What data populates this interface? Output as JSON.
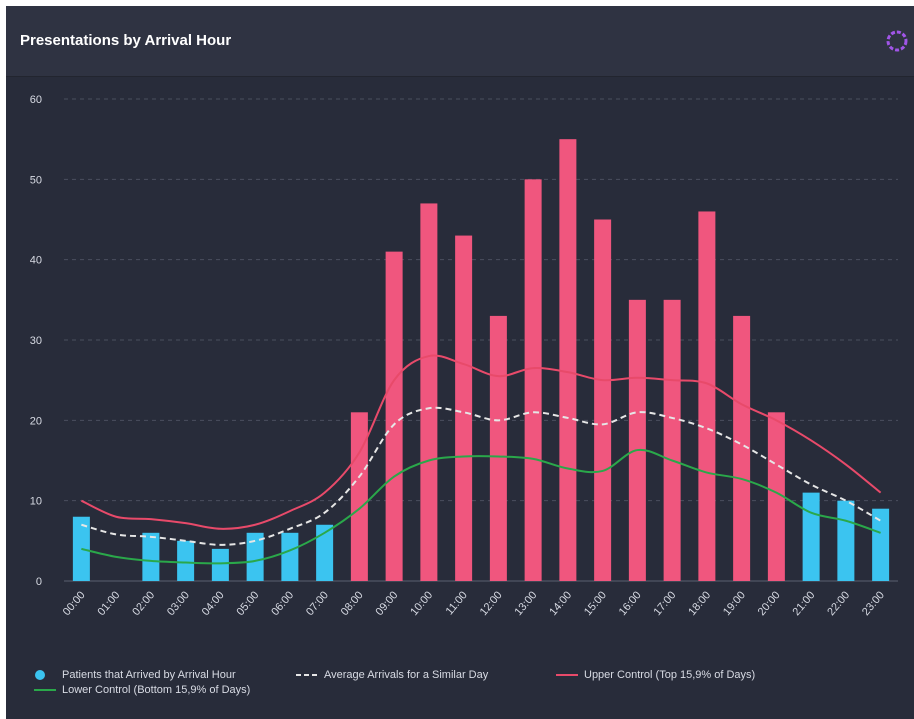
{
  "header": {
    "title": "Presentations by Arrival Hour",
    "menu_icon": "ring-menu-icon"
  },
  "colors": {
    "background": "#282c3a",
    "header": "#2f3342",
    "bar_normal": "#3bc4f0",
    "bar_high": "#f0567e",
    "average_line": "#e6e6e6",
    "upper_line": "#e84a6a",
    "lower_line": "#2aa84a",
    "grid": "#4a4f5f",
    "accent_icon": "#a155e8"
  },
  "chart_data": {
    "type": "bar",
    "categories": [
      "00:00",
      "01:00",
      "02:00",
      "03:00",
      "04:00",
      "05:00",
      "06:00",
      "07:00",
      "08:00",
      "09:00",
      "10:00",
      "11:00",
      "12:00",
      "13:00",
      "14:00",
      "15:00",
      "16:00",
      "17:00",
      "18:00",
      "19:00",
      "20:00",
      "21:00",
      "22:00",
      "23:00"
    ],
    "ylim": [
      0,
      60
    ],
    "yticks": [
      0,
      10,
      20,
      30,
      40,
      50,
      60
    ],
    "grid": true,
    "legend_position": "bottom",
    "series": [
      {
        "name": "Patients that Arrived by Arrival Hour",
        "kind": "bar",
        "values": [
          8,
          0,
          6,
          5,
          4,
          6,
          6,
          7,
          21,
          41,
          47,
          43,
          33,
          50,
          55,
          45,
          35,
          35,
          46,
          33,
          21,
          11,
          10,
          9
        ],
        "highlight": [
          false,
          false,
          false,
          false,
          false,
          false,
          false,
          false,
          true,
          true,
          true,
          true,
          true,
          true,
          true,
          true,
          true,
          true,
          true,
          true,
          true,
          false,
          false,
          false
        ]
      },
      {
        "name": "Average Arrivals for a Similar Day",
        "kind": "line",
        "style": "dashed",
        "values": [
          7,
          5.8,
          5.5,
          5,
          4.5,
          5,
          6.5,
          8.5,
          13,
          19.5,
          21.5,
          21,
          20,
          21,
          20.3,
          19.5,
          21,
          20.3,
          19,
          17,
          14.5,
          12,
          10,
          7.5
        ]
      },
      {
        "name": "Upper Control (Top 15,9% of Days)",
        "kind": "line",
        "style": "solid",
        "values": [
          10,
          8,
          7.7,
          7.2,
          6.5,
          7,
          8.7,
          11,
          16,
          25,
          28,
          27,
          25.5,
          26.5,
          26,
          25,
          25.3,
          25,
          24.6,
          22,
          20,
          17.5,
          14.5,
          11
        ]
      },
      {
        "name": "Lower Control (Bottom 15,9% of Days)",
        "kind": "line",
        "style": "solid",
        "values": [
          4,
          3,
          2.5,
          2.3,
          2.2,
          2.5,
          3.8,
          6,
          9,
          13,
          15,
          15.5,
          15.5,
          15.2,
          14,
          13.7,
          16.3,
          15,
          13.5,
          12.7,
          11,
          8.5,
          7.5,
          6
        ]
      }
    ]
  }
}
